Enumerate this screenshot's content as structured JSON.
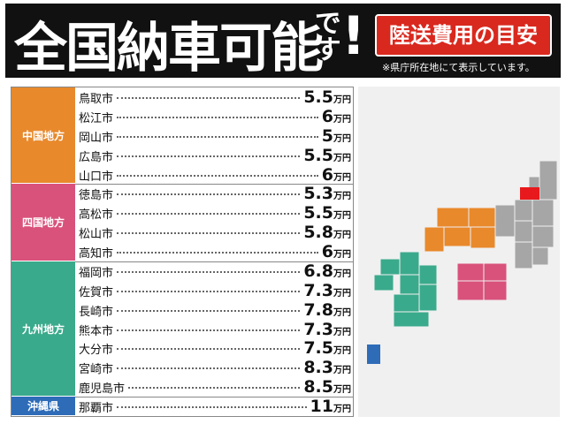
{
  "header": {
    "title": "全国納車可能",
    "title_suffix": "です",
    "title_mark": "!",
    "badge": "陸送費用の目安",
    "note": "※県庁所在地にて表示しています。"
  },
  "table": {
    "price_unit": "万円",
    "regions": [
      {
        "name": "中国地方",
        "color": "#e8892c",
        "rows": [
          {
            "city": "鳥取市",
            "price": 5.5
          },
          {
            "city": "松江市",
            "price": 6
          },
          {
            "city": "岡山市",
            "price": 5
          },
          {
            "city": "広島市",
            "price": 5.5
          },
          {
            "city": "山口市",
            "price": 6
          }
        ]
      },
      {
        "name": "四国地方",
        "color": "#d9527c",
        "rows": [
          {
            "city": "徳島市",
            "price": 5.3
          },
          {
            "city": "高松市",
            "price": 5.5
          },
          {
            "city": "松山市",
            "price": 5.8
          },
          {
            "city": "高知市",
            "price": 6
          }
        ]
      },
      {
        "name": "九州地方",
        "color": "#3aaa8c",
        "rows": [
          {
            "city": "福岡市",
            "price": 6.8
          },
          {
            "city": "佐賀市",
            "price": 7.3
          },
          {
            "city": "長崎市",
            "price": 7.8
          },
          {
            "city": "熊本市",
            "price": 7.3
          },
          {
            "city": "大分市",
            "price": 7.5
          },
          {
            "city": "宮崎市",
            "price": 8.3
          },
          {
            "city": "鹿児島市",
            "price": 8.5
          }
        ]
      },
      {
        "name": "沖縄県",
        "color": "#2e6cb8",
        "rows": [
          {
            "city": "那覇市",
            "price": 11
          }
        ]
      }
    ]
  }
}
